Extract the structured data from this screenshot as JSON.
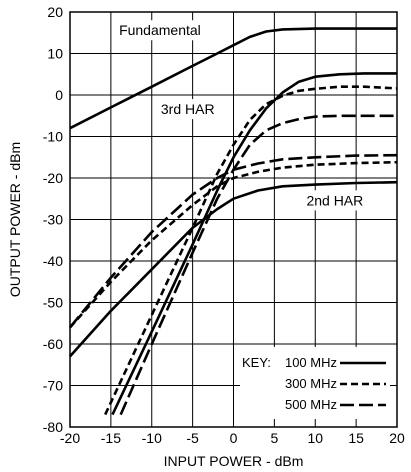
{
  "chart_data": {
    "type": "line",
    "xlabel": "INPUT POWER - dBm",
    "ylabel": "OUTPUT POWER - dBm",
    "xlim": [
      -20,
      20
    ],
    "ylim": [
      -80,
      20
    ],
    "x_ticks": [
      "-20",
      "-15",
      "-10",
      "-5",
      "0",
      "5",
      "10",
      "15",
      "20"
    ],
    "y_ticks": [
      "20",
      "10",
      "0",
      "-10",
      "-20",
      "-30",
      "-40",
      "-50",
      "-60",
      "-70",
      "-80"
    ],
    "grid": true,
    "legend": {
      "title": "KEY:",
      "placement": "bottom-right",
      "entries": [
        {
          "label": "100 MHz",
          "dash": "solid"
        },
        {
          "label": "300 MHz",
          "dash": "short-dash"
        },
        {
          "label": "500 MHz",
          "dash": "long-dash"
        }
      ]
    },
    "annotations": [
      {
        "text": "Fundamental",
        "x": -9,
        "y": 14.4
      },
      {
        "text": "3rd HAR",
        "x": -5.6,
        "y": -4.6
      },
      {
        "text": "2nd HAR",
        "x": 12.4,
        "y": -26.6
      }
    ],
    "series": [
      {
        "group": "Fundamental",
        "freq": "100 MHz",
        "dash": "solid",
        "x": [
          -20,
          -15,
          -10,
          -5,
          -2,
          0,
          2,
          4,
          6,
          10,
          15,
          20
        ],
        "y": [
          -8,
          -3,
          2,
          7,
          10,
          12,
          14,
          15.3,
          15.8,
          16,
          16,
          16
        ]
      },
      {
        "group": "3rd HAR",
        "freq": "100 MHz",
        "dash": "solid",
        "x": [
          -14.8,
          -10,
          -5,
          -2,
          0,
          2,
          4,
          6,
          8,
          10,
          13,
          16,
          20
        ],
        "y": [
          -77,
          -57,
          -36,
          -23,
          -15,
          -8.5,
          -3.2,
          0.6,
          3.2,
          4.4,
          5,
          5.2,
          5.2
        ]
      },
      {
        "group": "3rd HAR",
        "freq": "300 MHz",
        "dash": "short-dash",
        "x": [
          -15.7,
          -10,
          -5,
          -2,
          0,
          2,
          4,
          6,
          8,
          10,
          13,
          16,
          20
        ],
        "y": [
          -77,
          -53,
          -32,
          -19,
          -12,
          -6,
          -2.2,
          -0.2,
          1,
          1.5,
          2,
          2,
          1.6
        ]
      },
      {
        "group": "3rd HAR",
        "freq": "500 MHz",
        "dash": "long-dash",
        "x": [
          -13.8,
          -10,
          -5,
          -2,
          0,
          2,
          4,
          6,
          8,
          10,
          13,
          16,
          20
        ],
        "y": [
          -77,
          -60,
          -38,
          -25,
          -18,
          -12,
          -8.5,
          -6.8,
          -5.8,
          -5.2,
          -5,
          -5,
          -5
        ]
      },
      {
        "group": "2nd HAR",
        "freq": "100 MHz",
        "dash": "solid",
        "x": [
          -20,
          -15,
          -10,
          -5,
          -2,
          0,
          3,
          6,
          10,
          15,
          20
        ],
        "y": [
          -63,
          -52,
          -42,
          -32,
          -27.5,
          -25,
          -23,
          -22,
          -21.6,
          -21.2,
          -21
        ]
      },
      {
        "group": "2nd HAR",
        "freq": "300 MHz",
        "dash": "short-dash",
        "x": [
          -20,
          -15,
          -10,
          -5,
          -2,
          0,
          3,
          6,
          10,
          15,
          20
        ],
        "y": [
          -56,
          -45,
          -35,
          -26.5,
          -22,
          -20,
          -18.5,
          -17.5,
          -16.8,
          -16.4,
          -16.2
        ]
      },
      {
        "group": "2nd HAR",
        "freq": "500 MHz",
        "dash": "long-dash",
        "x": [
          -20,
          -15,
          -10,
          -5,
          -2,
          0,
          3,
          6,
          10,
          15,
          20
        ],
        "y": [
          -56,
          -44,
          -33,
          -24,
          -20,
          -18,
          -16.5,
          -15.5,
          -15,
          -14.6,
          -14.5
        ]
      }
    ]
  }
}
